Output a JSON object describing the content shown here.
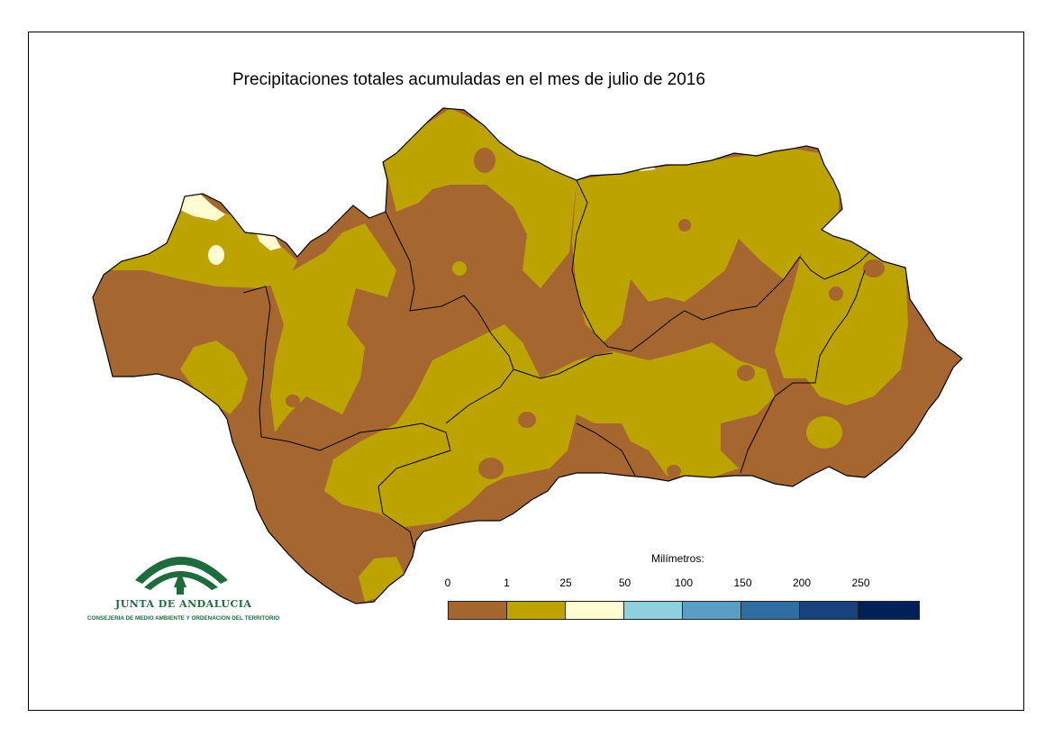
{
  "title": "Precipitaciones totales acumuladas en el mes de julio de 2016",
  "legend": {
    "unit_label": "Milímetros:",
    "ticks": [
      "0",
      "1",
      "25",
      "50",
      "100",
      "150",
      "200",
      "250"
    ],
    "colors": [
      "#a5672f",
      "#bca300",
      "#fefcd0",
      "#8ed0dd",
      "#5b9ec5",
      "#2f6ea3",
      "#18427e",
      "#00205a"
    ]
  },
  "logo": {
    "name": "JUNTA DE ANDALUCIA",
    "subtitle": "CONSEJERIA DE MEDIO AMBIENTE Y ORDENACION DEL TERRITORIO"
  },
  "map_colors": {
    "dry": "#a5672f",
    "low": "#bca300",
    "mid": "#fefcd0",
    "border": "#000000"
  }
}
